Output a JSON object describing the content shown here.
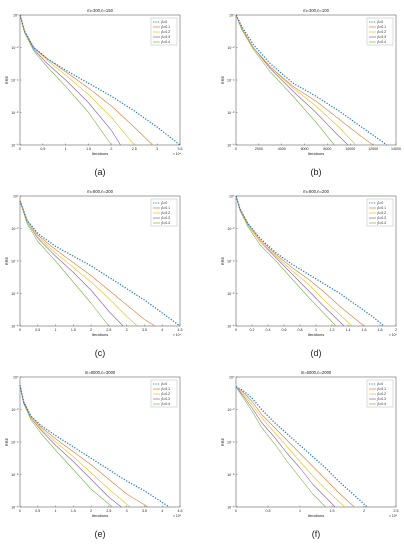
{
  "legend_labels": [
    "β=0",
    "β=0.1",
    "β=0.2",
    "β=0.3",
    "β=0.4"
  ],
  "series_colors": [
    "#1f77d4",
    "#e07b2f",
    "#e8c21b",
    "#8a5fb0",
    "#77b84a"
  ],
  "chart_data": [
    {
      "type": "line",
      "panel_label": "(a)",
      "title": "m=300,n=150",
      "xlabel": "Iterations",
      "ylabel": "RRE",
      "x_multiplier": "× 10⁴",
      "xlim": [
        0,
        3.5
      ],
      "ylim_log10": [
        -8,
        0
      ],
      "xticks": [
        "0",
        "0.5",
        "1",
        "1.5",
        "2",
        "2.5",
        "3",
        "3.5"
      ],
      "yticks": [
        "10⁰",
        "10⁻²",
        "10⁻⁴",
        "10⁻⁶",
        "10⁻⁸"
      ],
      "legend_position": "top-right",
      "series": [
        {
          "name": "β=0",
          "x": [
            0,
            0.1,
            0.3,
            0.6,
            1.0,
            1.5,
            2.0,
            2.5,
            3.0,
            3.5
          ],
          "log10_y": [
            0,
            -1.0,
            -2.0,
            -2.7,
            -3.4,
            -4.2,
            -5.0,
            -5.9,
            -6.9,
            -8.0
          ]
        },
        {
          "name": "β=0.1",
          "x": [
            0,
            0.1,
            0.3,
            0.6,
            1.0,
            1.5,
            2.0,
            2.5,
            2.9
          ],
          "log10_y": [
            0,
            -1.0,
            -2.0,
            -2.7,
            -3.5,
            -4.5,
            -5.6,
            -6.9,
            -8.0
          ]
        },
        {
          "name": "β=0.2",
          "x": [
            0,
            0.1,
            0.3,
            0.6,
            1.0,
            1.5,
            2.0,
            2.5
          ],
          "log10_y": [
            0,
            -1.0,
            -2.0,
            -2.8,
            -3.7,
            -4.9,
            -6.3,
            -8.0
          ]
        },
        {
          "name": "β=0.3",
          "x": [
            0,
            0.1,
            0.3,
            0.6,
            1.0,
            1.5,
            2.0,
            2.2
          ],
          "log10_y": [
            0,
            -1.0,
            -2.1,
            -3.0,
            -4.0,
            -5.4,
            -7.1,
            -8.0
          ]
        },
        {
          "name": "β=0.4",
          "x": [
            0,
            0.1,
            0.3,
            0.6,
            1.0,
            1.5,
            2.0
          ],
          "log10_y": [
            0,
            -1.1,
            -2.2,
            -3.2,
            -4.4,
            -6.0,
            -8.0
          ]
        }
      ]
    },
    {
      "type": "line",
      "panel_label": "(b)",
      "title": "m=300,n=100",
      "xlabel": "Iterations",
      "ylabel": "RRE",
      "x_multiplier": "",
      "xlim": [
        0,
        14000
      ],
      "ylim_log10": [
        -8,
        0
      ],
      "xticks": [
        "0",
        "2000",
        "4000",
        "6000",
        "8000",
        "10000",
        "12000",
        "14000"
      ],
      "yticks": [
        "10⁰",
        "10⁻²",
        "10⁻⁴",
        "10⁻⁶",
        "10⁻⁸"
      ],
      "legend_position": "top-right",
      "series": [
        {
          "name": "β=0",
          "x": [
            0,
            500,
            1500,
            3000,
            5000,
            7000,
            9000,
            11000,
            13200
          ],
          "log10_y": [
            0,
            -0.7,
            -1.8,
            -3.0,
            -4.2,
            -5.0,
            -5.9,
            -6.9,
            -8.0
          ]
        },
        {
          "name": "β=0.1",
          "x": [
            0,
            500,
            1500,
            3000,
            5000,
            7000,
            9000,
            11000,
            12000
          ],
          "log10_y": [
            0,
            -0.8,
            -2.0,
            -3.2,
            -4.4,
            -5.3,
            -6.4,
            -7.5,
            -8.0
          ]
        },
        {
          "name": "β=0.2",
          "x": [
            0,
            500,
            1500,
            3000,
            5000,
            7000,
            9000,
            10500
          ],
          "log10_y": [
            0,
            -0.8,
            -2.0,
            -3.2,
            -4.5,
            -5.6,
            -6.9,
            -8.0
          ]
        },
        {
          "name": "β=0.3",
          "x": [
            0,
            500,
            1500,
            3000,
            5000,
            7000,
            8500,
            9800
          ],
          "log10_y": [
            0,
            -0.8,
            -2.0,
            -3.3,
            -4.7,
            -6.0,
            -7.1,
            -8.0
          ]
        },
        {
          "name": "β=0.4",
          "x": [
            0,
            500,
            1500,
            3000,
            5000,
            7000,
            8600
          ],
          "log10_y": [
            0,
            -0.9,
            -2.1,
            -3.5,
            -5.0,
            -6.6,
            -8.0
          ]
        }
      ]
    },
    {
      "type": "line",
      "panel_label": "(c)",
      "title": "m=800,n=300",
      "xlabel": "Iterations",
      "ylabel": "RRE",
      "x_multiplier": "× 10⁴",
      "xlim": [
        0,
        4.5
      ],
      "ylim_log10": [
        -8,
        0
      ],
      "xticks": [
        "0",
        "0.5",
        "1",
        "1.5",
        "2",
        "2.5",
        "3",
        "3.5",
        "4",
        "4.5"
      ],
      "yticks": [
        "10⁰",
        "10⁻²",
        "10⁻⁴",
        "10⁻⁶",
        "10⁻⁸"
      ],
      "legend_position": "top-right",
      "series": [
        {
          "name": "β=0",
          "x": [
            0,
            0.2,
            0.5,
            1.0,
            1.5,
            2.0,
            2.5,
            3.0,
            3.5,
            4.0,
            4.5
          ],
          "log10_y": [
            -0.3,
            -1.5,
            -2.3,
            -3.1,
            -3.7,
            -4.3,
            -5.0,
            -5.7,
            -6.4,
            -7.2,
            -8.0
          ]
        },
        {
          "name": "β=0.1",
          "x": [
            0,
            0.2,
            0.5,
            1.0,
            1.5,
            2.0,
            2.5,
            3.0,
            3.5,
            3.8
          ],
          "log10_y": [
            -0.3,
            -1.5,
            -2.4,
            -3.3,
            -4.1,
            -4.9,
            -5.8,
            -6.7,
            -7.6,
            -8.0
          ]
        },
        {
          "name": "β=0.2",
          "x": [
            0,
            0.2,
            0.5,
            1.0,
            1.5,
            2.0,
            2.5,
            3.0,
            3.3
          ],
          "log10_y": [
            -0.3,
            -1.6,
            -2.5,
            -3.5,
            -4.4,
            -5.3,
            -6.3,
            -7.4,
            -8.0
          ]
        },
        {
          "name": "β=0.3",
          "x": [
            0,
            0.2,
            0.5,
            1.0,
            1.5,
            2.0,
            2.5,
            2.9
          ],
          "log10_y": [
            -0.3,
            -1.6,
            -2.6,
            -3.7,
            -4.7,
            -5.8,
            -7.1,
            -8.0
          ]
        },
        {
          "name": "β=0.4",
          "x": [
            0,
            0.2,
            0.5,
            1.0,
            1.5,
            2.0,
            2.5
          ],
          "log10_y": [
            -0.3,
            -1.7,
            -2.8,
            -4.0,
            -5.3,
            -6.6,
            -8.0
          ]
        }
      ]
    },
    {
      "type": "line",
      "panel_label": "(d)",
      "title": "m=800,n=200",
      "xlabel": "Iterations",
      "ylabel": "RRE",
      "x_multiplier": "× 10⁴",
      "xlim": [
        0,
        2
      ],
      "ylim_log10": [
        -8,
        0
      ],
      "xticks": [
        "0",
        "0.2",
        "0.4",
        "0.6",
        "0.8",
        "1",
        "1.2",
        "1.4",
        "1.6",
        "1.8",
        "2"
      ],
      "yticks": [
        "10⁰",
        "10⁻²",
        "10⁻⁴",
        "10⁻⁶",
        "10⁻⁸"
      ],
      "legend_position": "top-right",
      "series": [
        {
          "name": "β=0",
          "x": [
            0,
            0.05,
            0.15,
            0.3,
            0.5,
            0.7,
            0.9,
            1.1,
            1.3,
            1.5,
            1.7,
            1.85
          ],
          "log10_y": [
            0,
            -0.8,
            -1.7,
            -2.6,
            -3.5,
            -4.2,
            -4.8,
            -5.4,
            -6.0,
            -6.7,
            -7.4,
            -8.0
          ]
        },
        {
          "name": "β=0.1",
          "x": [
            0,
            0.05,
            0.15,
            0.3,
            0.5,
            0.7,
            0.9,
            1.1,
            1.3,
            1.6
          ],
          "log10_y": [
            0,
            -0.8,
            -1.7,
            -2.7,
            -3.6,
            -4.4,
            -5.1,
            -5.9,
            -6.8,
            -8.0
          ]
        },
        {
          "name": "β=0.2",
          "x": [
            0,
            0.05,
            0.15,
            0.3,
            0.5,
            0.7,
            0.9,
            1.1,
            1.45
          ],
          "log10_y": [
            0,
            -0.8,
            -1.8,
            -2.8,
            -3.7,
            -4.6,
            -5.4,
            -6.4,
            -8.0
          ]
        },
        {
          "name": "β=0.3",
          "x": [
            0,
            0.05,
            0.15,
            0.3,
            0.5,
            0.7,
            0.9,
            1.1,
            1.35
          ],
          "log10_y": [
            0,
            -0.8,
            -1.8,
            -2.8,
            -3.8,
            -4.8,
            -5.8,
            -6.8,
            -8.0
          ]
        },
        {
          "name": "β=0.4",
          "x": [
            0,
            0.05,
            0.15,
            0.3,
            0.5,
            0.7,
            0.9,
            1.25
          ],
          "log10_y": [
            0,
            -0.9,
            -1.9,
            -3.0,
            -4.0,
            -5.1,
            -6.2,
            -8.0
          ]
        }
      ]
    },
    {
      "type": "line",
      "panel_label": "(e)",
      "title": "m=8000,n=3000",
      "xlabel": "Iterations",
      "ylabel": "RRE",
      "x_multiplier": "× 10⁵",
      "xlim": [
        0,
        4.5
      ],
      "ylim_log10": [
        -8,
        0
      ],
      "xticks": [
        "0",
        "0.5",
        "1",
        "1.5",
        "2",
        "2.5",
        "3",
        "3.5",
        "4",
        "4.5"
      ],
      "yticks": [
        "10⁰",
        "10⁻²",
        "10⁻⁴",
        "10⁻⁶",
        "10⁻⁸"
      ],
      "legend_position": "top-right",
      "series": [
        {
          "name": "β=0",
          "x": [
            0,
            0.1,
            0.3,
            0.6,
            1.0,
            1.5,
            2.0,
            2.5,
            3.0,
            3.5,
            4.2
          ],
          "log10_y": [
            -0.5,
            -1.5,
            -2.4,
            -3.0,
            -3.6,
            -4.3,
            -5.0,
            -5.7,
            -6.4,
            -7.0,
            -8.0
          ]
        },
        {
          "name": "β=0.1",
          "x": [
            0,
            0.1,
            0.3,
            0.6,
            1.0,
            1.5,
            2.0,
            2.5,
            3.0,
            3.6
          ],
          "log10_y": [
            -0.5,
            -1.5,
            -2.4,
            -3.1,
            -3.8,
            -4.6,
            -5.4,
            -6.3,
            -7.2,
            -8.0
          ]
        },
        {
          "name": "β=0.2",
          "x": [
            0,
            0.1,
            0.3,
            0.6,
            1.0,
            1.5,
            2.0,
            2.5,
            3.1
          ],
          "log10_y": [
            -0.5,
            -1.5,
            -2.5,
            -3.2,
            -4.0,
            -4.9,
            -5.9,
            -6.9,
            -8.0
          ]
        },
        {
          "name": "β=0.3",
          "x": [
            0,
            0.1,
            0.3,
            0.6,
            1.0,
            1.5,
            2.0,
            2.5,
            2.85
          ],
          "log10_y": [
            -0.5,
            -1.6,
            -2.5,
            -3.3,
            -4.2,
            -5.2,
            -6.3,
            -7.4,
            -8.0
          ]
        },
        {
          "name": "β=0.4",
          "x": [
            0,
            0.1,
            0.3,
            0.6,
            1.0,
            1.5,
            2.0,
            2.6
          ],
          "log10_y": [
            -0.5,
            -1.6,
            -2.6,
            -3.5,
            -4.5,
            -5.7,
            -6.9,
            -8.0
          ]
        }
      ]
    },
    {
      "type": "line",
      "panel_label": "(f)",
      "title": "m=6000,n=2000",
      "xlabel": "Iterations",
      "ylabel": "RRE",
      "x_multiplier": "× 10⁵",
      "xlim": [
        0,
        2.5
      ],
      "ylim_log10": [
        -8,
        0
      ],
      "xticks": [
        "0",
        "0.5",
        "1",
        "1.5",
        "2",
        "2.5"
      ],
      "yticks": [
        "10⁰",
        "10⁻²",
        "10⁻⁴",
        "10⁻⁶",
        "10⁻⁸"
      ],
      "legend_position": "top-right",
      "series": [
        {
          "name": "β=0",
          "x": [
            0,
            0.1,
            0.25,
            0.4,
            0.6,
            0.8,
            1.0,
            1.2,
            1.4,
            1.6,
            1.8,
            2.05
          ],
          "log10_y": [
            -0.6,
            -0.8,
            -1.3,
            -2.0,
            -2.8,
            -3.5,
            -4.2,
            -4.9,
            -5.6,
            -6.4,
            -7.1,
            -8.0
          ]
        },
        {
          "name": "β=0.1",
          "x": [
            0,
            0.1,
            0.25,
            0.4,
            0.6,
            0.8,
            1.0,
            1.2,
            1.4,
            1.6,
            1.85
          ],
          "log10_y": [
            -0.6,
            -0.9,
            -1.5,
            -2.3,
            -3.1,
            -3.9,
            -4.7,
            -5.5,
            -6.3,
            -7.1,
            -8.0
          ]
        },
        {
          "name": "β=0.2",
          "x": [
            0,
            0.1,
            0.25,
            0.4,
            0.6,
            0.8,
            1.0,
            1.2,
            1.4,
            1.7
          ],
          "log10_y": [
            -0.6,
            -1.0,
            -1.7,
            -2.5,
            -3.4,
            -4.3,
            -5.2,
            -6.1,
            -6.9,
            -8.0
          ]
        },
        {
          "name": "β=0.3",
          "x": [
            0,
            0.1,
            0.25,
            0.4,
            0.6,
            0.8,
            1.0,
            1.2,
            1.55
          ],
          "log10_y": [
            -0.6,
            -1.1,
            -1.9,
            -2.8,
            -3.7,
            -4.7,
            -5.6,
            -6.6,
            -8.0
          ]
        },
        {
          "name": "β=0.4",
          "x": [
            0,
            0.1,
            0.25,
            0.4,
            0.6,
            0.8,
            1.0,
            1.2,
            1.4
          ],
          "log10_y": [
            -0.6,
            -1.2,
            -2.1,
            -3.1,
            -4.1,
            -5.2,
            -6.2,
            -7.2,
            -8.0
          ]
        }
      ]
    }
  ]
}
